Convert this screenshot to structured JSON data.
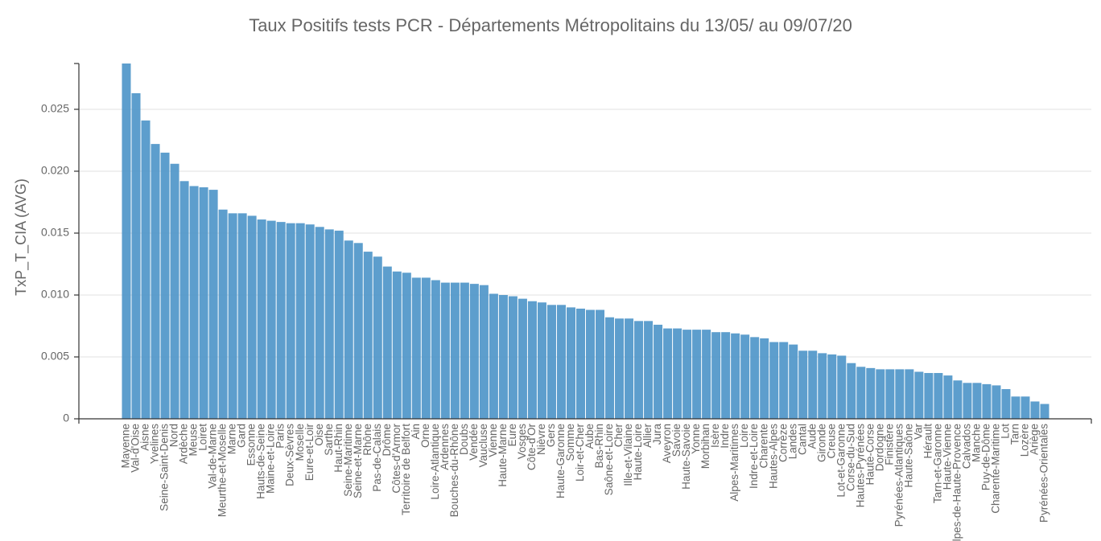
{
  "chart_data": {
    "type": "bar",
    "title": "Taux Positifs tests PCR - Départements Métropolitains du 13/05/ au 09/07/20",
    "y_label": "TxP_T_CIA (AVG)",
    "color": "#4f96c9",
    "grid": true,
    "ylim": [
      0,
      0.0287
    ],
    "yticks": [
      0,
      0.005,
      {
        "value": 0.01,
        "label": "0.010"
      },
      0.015,
      {
        "value": 0.02,
        "label": "0.020"
      },
      0.025
    ],
    "categories": [
      "Mayenne",
      "Val-d'Oise",
      "Aisne",
      "Yvelines",
      "Seine-Saint-Denis",
      "Nord",
      "Ardèche",
      "Meuse",
      "Loiret",
      "Val-de-Marne",
      "Meurthe-et-Moselle",
      "Marne",
      "Gard",
      "Essonne",
      "Hauts-de-Seine",
      "Maine-et-Loire",
      "Paris",
      "Deux-Sèvres",
      "Moselle",
      "Eure-et-Loir",
      "Oise",
      "Sarthe",
      "Haut-Rhin",
      "Seine-Maritime",
      "Seine-et-Marne",
      "Rhône",
      "Pas-de-Calais",
      "Drôme",
      "Côtes-d'Armor",
      "Territoire de Belfort",
      "Ain",
      "Orne",
      "Loire-Atlantique",
      "Ardennes",
      "Bouches-du-Rhône",
      "Doubs",
      "Vendée",
      "Vaucluse",
      "Vienne",
      "Haute-Marne",
      "Eure",
      "Vosges",
      "Côte-d'Or",
      "Nièvre",
      "Gers",
      "Haute-Garonne",
      "Somme",
      "Loir-et-Cher",
      "Aube",
      "Bas-Rhin",
      "Saône-et-Loire",
      "Cher",
      "Ille-et-Vilaine",
      "Haute-Loire",
      "Allier",
      "Jura",
      "Aveyron",
      "Savoie",
      "Haute-Savoie",
      "Yonne",
      "Morbihan",
      "Isère",
      "Indre",
      "Alpes-Maritimes",
      "Loire",
      "Indre-et-Loire",
      "Charente",
      "Hautes-Alpes",
      "Corrèze",
      "Landes",
      "Cantal",
      "Aude",
      "Gironde",
      "Creuse",
      "Lot-et-Garonne",
      "Corse-du-Sud",
      "Hautes-Pyrénées",
      "Haute-Corse",
      "Dordogne",
      "Finistère",
      "Pyrénées-Atlantiques",
      "Haute-Saône",
      "Var",
      "Hérault",
      "Tarn-et-Garonne",
      "Haute-Vienne",
      "Alpes-de-Haute-Provence",
      "Calvados",
      "Manche",
      "Puy-de-Dôme",
      "Charente-Maritime",
      "Lot",
      "Tarn",
      "Lozère",
      "Ariège",
      "Pyrénées-Orientales"
    ],
    "values": [
      0.0287,
      0.0263,
      0.0241,
      0.0222,
      0.0215,
      0.0206,
      0.0192,
      0.0188,
      0.0187,
      0.0185,
      0.0169,
      0.0166,
      0.0166,
      0.0164,
      0.0161,
      0.016,
      0.0159,
      0.0158,
      0.0158,
      0.0157,
      0.0155,
      0.0153,
      0.0152,
      0.0144,
      0.0142,
      0.0135,
      0.0131,
      0.0123,
      0.0119,
      0.0118,
      0.0114,
      0.0114,
      0.0112,
      0.011,
      0.011,
      0.011,
      0.0109,
      0.0108,
      0.0101,
      0.01,
      0.0099,
      0.0097,
      0.0095,
      0.0094,
      0.0092,
      0.0092,
      0.009,
      0.0089,
      0.0088,
      0.0088,
      0.0082,
      0.0081,
      0.0081,
      0.0079,
      0.0079,
      0.0076,
      0.0073,
      0.0073,
      0.0072,
      0.0072,
      0.0072,
      0.007,
      0.007,
      0.0069,
      0.0068,
      0.0066,
      0.0065,
      0.0062,
      0.0062,
      0.006,
      0.0055,
      0.0055,
      0.0053,
      0.0052,
      0.0051,
      0.0045,
      0.0042,
      0.0041,
      0.004,
      0.004,
      0.004,
      0.004,
      0.0038,
      0.0037,
      0.0037,
      0.0035,
      0.0031,
      0.0029,
      0.0029,
      0.0028,
      0.0027,
      0.0024,
      0.0018,
      0.0018,
      0.0014,
      0.0012
    ]
  }
}
